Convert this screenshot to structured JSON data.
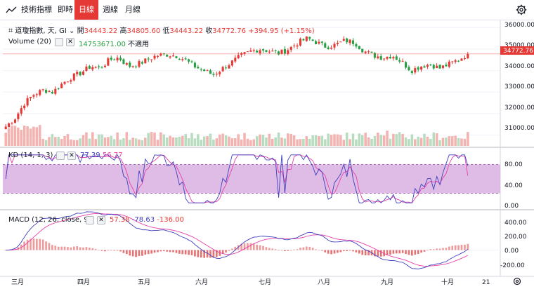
{
  "toolbar": {
    "indicators_label": "技術指標",
    "tabs": [
      {
        "label": "即時",
        "active": false
      },
      {
        "label": "日線",
        "active": true
      },
      {
        "label": "週線",
        "active": false
      },
      {
        "label": "月線",
        "active": false
      }
    ],
    "indicators_icon": "indicators-icon",
    "settings_icon": "gear-icon"
  },
  "main": {
    "symbol": "道瓊指數, 天, GI",
    "ohlc": {
      "open_label": "開",
      "open": "34443.22",
      "high_label": "高",
      "high": "34805.60",
      "low_label": "低",
      "low": "34443.22",
      "close_label": "收",
      "close": "34772.76",
      "change": "+394.95 (+1.15%)"
    },
    "volume_label": "Volume (20)",
    "volume_value": "14753671.00",
    "volume_na": "不適用",
    "price_tag": "34772.76",
    "y_ticks": [
      "36000.00",
      "35000.00",
      "34000.00",
      "33000.00",
      "32000.00",
      "31000.00"
    ]
  },
  "kd": {
    "label": "KD (14, 1, 3)",
    "k_value": "77.39",
    "d_value": "56.77",
    "y_ticks": [
      "80.00",
      "40.00",
      "0.00"
    ]
  },
  "macd": {
    "label": "MACD (12, 26, close, 9)",
    "macd_value": "57.38",
    "signal_value": "-78.63",
    "hist_value": "-136.00",
    "y_ticks": [
      "400.00",
      "200.00",
      "0.00",
      "-200.00"
    ]
  },
  "x_axis": {
    "labels": [
      "三月",
      "四月",
      "五月",
      "六月",
      "七月",
      "八月",
      "九月",
      "十月",
      "21"
    ]
  },
  "colors": {
    "up": "#e53935",
    "down": "#26a042",
    "accent": "#e53935",
    "k_line": "#3f3fbf",
    "d_line": "#e83ea8",
    "kd_band": "#d4a6dc"
  },
  "chart_data": {
    "type": "candlestick",
    "title": "道瓊指數, 天, GI",
    "ylim": [
      30500,
      36300
    ],
    "x": [
      "三月",
      "四月",
      "五月",
      "六月",
      "七月",
      "八月",
      "九月",
      "十月"
    ],
    "close_path": [
      31400,
      31800,
      32500,
      32900,
      33100,
      33000,
      33400,
      33700,
      33900,
      34200,
      34100,
      34500,
      34600,
      34200,
      34300,
      34500,
      34700,
      34750,
      34700,
      34500,
      34200,
      34000,
      33800,
      34100,
      34400,
      34700,
      34900,
      35000,
      34900,
      34800,
      35000,
      35300,
      35500,
      35300,
      35100,
      35200,
      35400,
      35300,
      34900,
      34700,
      34600,
      34700,
      34400,
      34000,
      34200,
      34300,
      34100,
      34300,
      34500,
      34772.76
    ],
    "kd": {
      "ylim": [
        -10,
        110
      ],
      "overbought": 80,
      "oversold": 20,
      "k_last": 77.39,
      "d_last": 56.77
    },
    "macd": {
      "ylim": [
        -320,
        520
      ],
      "macd_last": 57.38,
      "signal_last": -78.63,
      "hist_last": -136.0
    }
  }
}
